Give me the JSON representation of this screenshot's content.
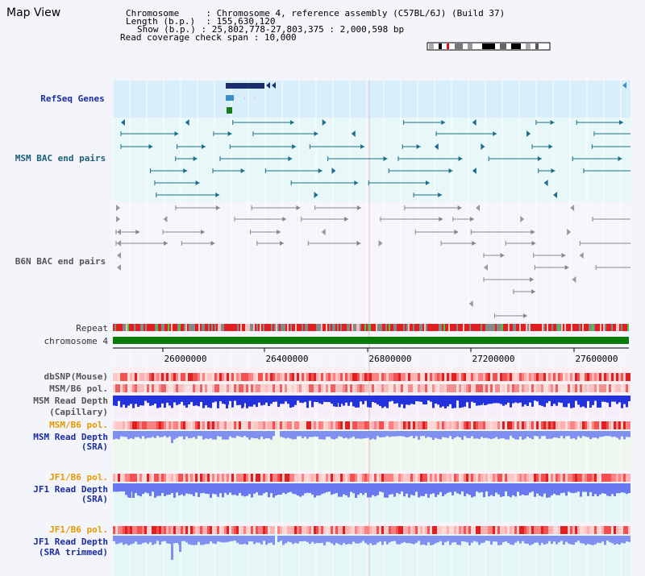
{
  "app": {
    "title": "Map View"
  },
  "info": {
    "chromosome_label": "Chromosome",
    "chromosome_value": "Chromosome 4, reference assembly (C57BL/6J) (Build 37)",
    "length_label": "Length (b.p.)",
    "length_value": "155,630,120",
    "show_label": "Show (b.p.)",
    "show_value": "25,802,778-27,803,375 : 2,000,598 bp",
    "coverage_label": "Read coverage check span",
    "coverage_value": "10,000"
  },
  "tracks": {
    "refseq": "RefSeq Genes",
    "msm_bac": "MSM BAC end pairs",
    "b6n_bac": "B6N BAC end pairs",
    "repeat": "Repeat",
    "chromosome": "chromosome 4",
    "dbsnp": "dbSNP(Mouse)",
    "msm_b6_pol_1": "MSM/B6 pol.",
    "msm_read_depth_cap": "MSM Read Depth",
    "msm_read_depth_cap_sub": "(Capillary)",
    "msm_b6_pol_2": "MSM/B6 pol.",
    "msm_read_depth_sra": "MSM Read Depth",
    "msm_read_depth_sra_sub": "(SRA)",
    "jf1_b6_pol_1": "JF1/B6 pol.",
    "jf1_read_depth_sra": "JF1 Read Depth",
    "jf1_read_depth_sra_sub": "(SRA)",
    "jf1_b6_pol_2": "JF1/B6 pol.",
    "jf1_read_depth_trim": "JF1 Read Depth",
    "jf1_read_depth_trim_sub": "(SRA trimmed)"
  },
  "axis": {
    "ticks": [
      "26000000",
      "26400000",
      "26800000",
      "27200000",
      "27600000"
    ]
  },
  "colors": {
    "refseq_bg": "#d9eefb",
    "bac_bg": "#e8f8f8",
    "gene_dark": "#1a2e6e",
    "gene_mid": "#3a8fc8",
    "gene_green": "#1a7a1a",
    "teal": "#1a6f8a",
    "gray_feat": "#777777",
    "repeat_red": "#e02020",
    "chrom_green": "#0a7a0a",
    "depth_blue": "#3344ee",
    "depth_light": "#7f8cf5",
    "accent_orange": "#e69a00"
  }
}
